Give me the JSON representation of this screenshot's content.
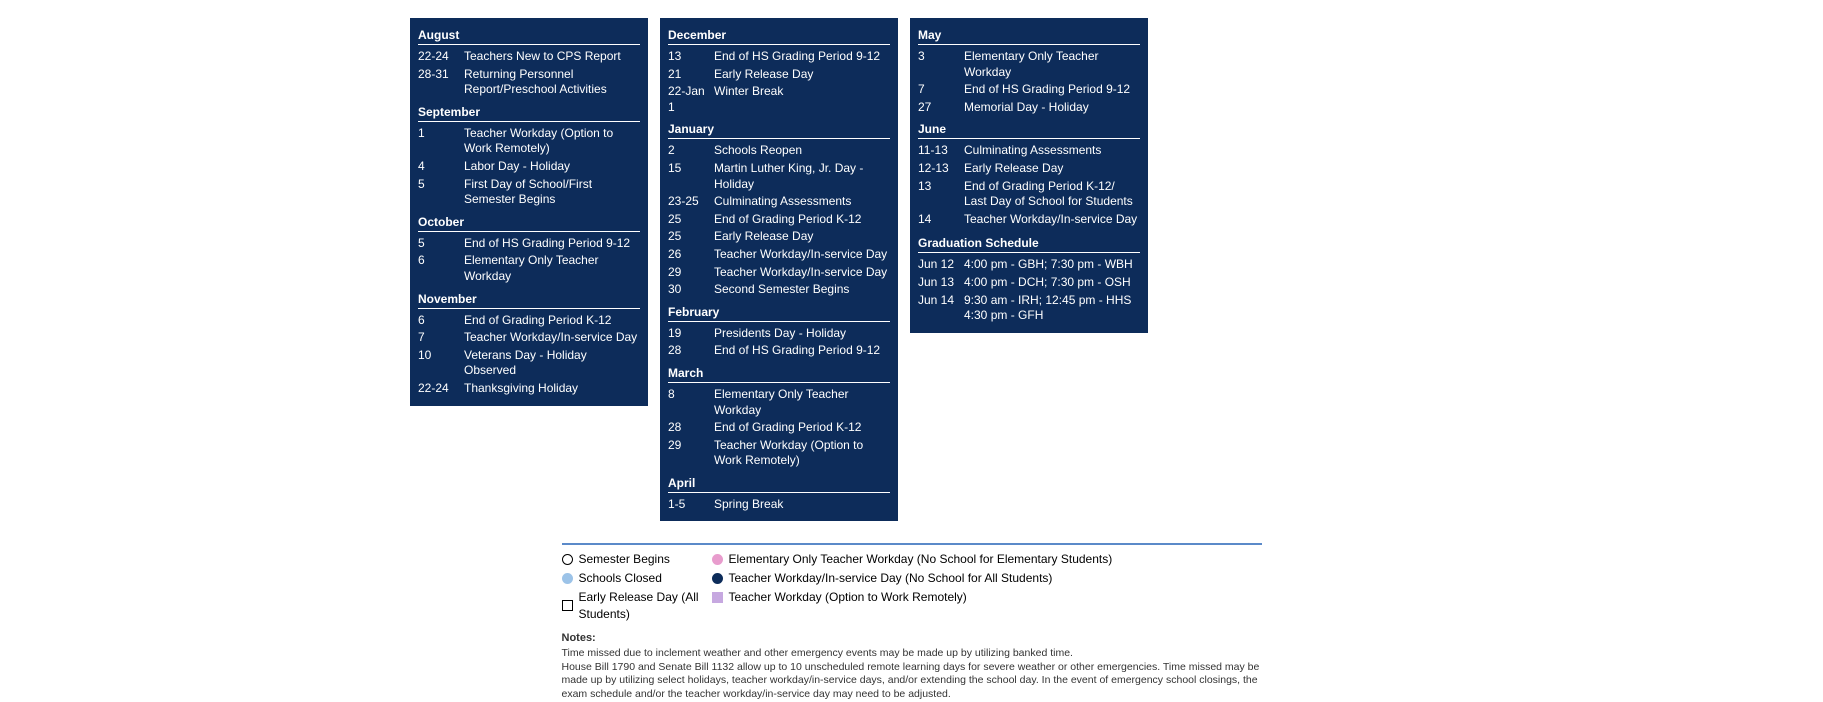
{
  "colors": {
    "panel_bg": "#0d2c5a",
    "panel_text": "#ffffff",
    "legend_border": "#5b8ac9"
  },
  "columns": [
    {
      "months": [
        {
          "name": "August",
          "events": [
            {
              "date": "22-24",
              "desc": "Teachers New to CPS Report"
            },
            {
              "date": "28-31",
              "desc": "Returning Personnel Report/Preschool Activities"
            }
          ]
        },
        {
          "name": "September",
          "events": [
            {
              "date": "1",
              "desc": "Teacher Workday (Option to Work Remotely)"
            },
            {
              "date": "4",
              "desc": "Labor Day - Holiday"
            },
            {
              "date": "5",
              "desc": "First Day of School/First Semester Begins"
            }
          ]
        },
        {
          "name": "October",
          "events": [
            {
              "date": "5",
              "desc": "End of HS Grading Period 9-12"
            },
            {
              "date": "6",
              "desc": "Elementary Only Teacher Workday"
            }
          ]
        },
        {
          "name": "November",
          "events": [
            {
              "date": "6",
              "desc": "End of Grading Period K-12"
            },
            {
              "date": "7",
              "desc": "Teacher Workday/In-service Day"
            },
            {
              "date": "10",
              "desc": "Veterans Day - Holiday Observed"
            },
            {
              "date": "22-24",
              "desc": "Thanksgiving Holiday"
            }
          ]
        }
      ]
    },
    {
      "months": [
        {
          "name": "December",
          "events": [
            {
              "date": "13",
              "desc": "End of HS Grading Period 9-12"
            },
            {
              "date": "21",
              "desc": "Early Release Day"
            },
            {
              "date": "22-Jan 1",
              "desc": "Winter Break"
            }
          ]
        },
        {
          "name": "January",
          "events": [
            {
              "date": "2",
              "desc": "Schools Reopen"
            },
            {
              "date": "15",
              "desc": "Martin Luther King, Jr. Day - Holiday"
            },
            {
              "date": "23-25",
              "desc": "Culminating Assessments"
            },
            {
              "date": "25",
              "desc": "End of Grading Period K-12"
            },
            {
              "date": "25",
              "desc": "Early Release Day"
            },
            {
              "date": "26",
              "desc": "Teacher Workday/In-service Day"
            },
            {
              "date": "29",
              "desc": "Teacher Workday/In-service Day"
            },
            {
              "date": "30",
              "desc": "Second Semester Begins"
            }
          ]
        },
        {
          "name": "February",
          "events": [
            {
              "date": "19",
              "desc": "Presidents Day - Holiday"
            },
            {
              "date": "28",
              "desc": "End of HS Grading Period 9-12"
            }
          ]
        },
        {
          "name": "March",
          "events": [
            {
              "date": "8",
              "desc": "Elementary Only Teacher Workday"
            },
            {
              "date": "28",
              "desc": "End of Grading Period K-12"
            },
            {
              "date": "29",
              "desc": "Teacher Workday (Option to Work Remotely)"
            }
          ]
        },
        {
          "name": "April",
          "events": [
            {
              "date": "1-5",
              "desc": "Spring Break"
            }
          ]
        }
      ]
    },
    {
      "months": [
        {
          "name": "May",
          "events": [
            {
              "date": "3",
              "desc": "Elementary Only Teacher Workday"
            },
            {
              "date": "7",
              "desc": "End of HS Grading Period 9-12"
            },
            {
              "date": "27",
              "desc": "Memorial Day - Holiday"
            }
          ]
        },
        {
          "name": "June",
          "events": [
            {
              "date": "11-13",
              "desc": "Culminating Assessments"
            },
            {
              "date": "12-13",
              "desc": "Early Release Day"
            },
            {
              "date": "13",
              "desc": "End of Grading Period K-12/ Last Day of School for Students"
            },
            {
              "date": "14",
              "desc": "Teacher Workday/In-service Day"
            }
          ]
        }
      ],
      "extra": {
        "title": "Graduation Schedule",
        "events": [
          {
            "date": "Jun 12",
            "desc": "4:00 pm - GBH; 7:30 pm - WBH"
          },
          {
            "date": "Jun 13",
            "desc": "4:00 pm - DCH; 7:30 pm - OSH"
          },
          {
            "date": "Jun 14",
            "desc": "9:30 am - IRH; 12:45 pm - HHS 4:30 pm - GFH"
          }
        ]
      }
    }
  ],
  "legend": {
    "left": [
      {
        "shape": "circle",
        "fill": "#ffffff",
        "border": "#000000",
        "label": "Semester Begins"
      },
      {
        "shape": "circle",
        "fill": "#9cc3e8",
        "border": "#9cc3e8",
        "label": "Schools Closed"
      },
      {
        "shape": "square",
        "fill": "#ffffff",
        "border": "#000000",
        "label": "Early Release Day (All Students)"
      }
    ],
    "right": [
      {
        "shape": "circle",
        "fill": "#e89ccd",
        "border": "#e89ccd",
        "label": "Elementary Only Teacher Workday (No School for Elementary Students)"
      },
      {
        "shape": "circle",
        "fill": "#0d2c5a",
        "border": "#0d2c5a",
        "label": "Teacher Workday/In-service Day (No School for All Students)"
      },
      {
        "shape": "square",
        "fill": "#c6a8e0",
        "border": "#c6a8e0",
        "label": "Teacher Workday (Option to Work Remotely)"
      }
    ]
  },
  "notes": {
    "title": "Notes:",
    "lines": [
      "Time missed due to inclement weather and other emergency events may be made up by utilizing banked time.",
      "House Bill 1790 and Senate Bill 1132 allow up to 10 unscheduled remote learning days for severe weather or other emergencies. Time missed may be made up by utilizing select holidays, teacher workday/in-service days, and/or extending the school day. In the event of emergency school closings, the exam schedule and/or the teacher workday/in-service day may need to be adjusted."
    ]
  }
}
